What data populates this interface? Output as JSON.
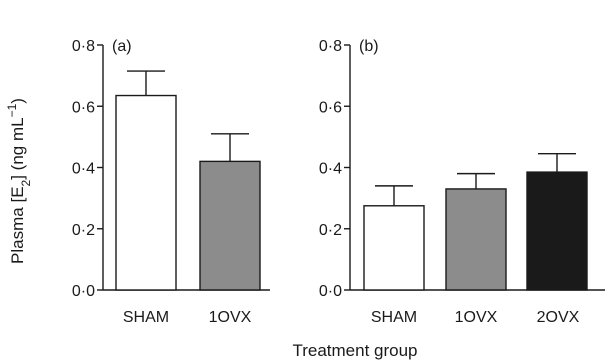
{
  "chart_data": [
    {
      "type": "bar",
      "panel_label": "(a)",
      "categories": [
        "SHAM",
        "1OVX"
      ],
      "values": [
        0.635,
        0.42
      ],
      "errors": [
        0.08,
        0.09
      ],
      "colors": [
        "#ffffff",
        "#8c8c8c"
      ],
      "ylim": [
        0,
        0.8
      ],
      "yticks": [
        "0·0",
        "0·2",
        "0·4",
        "0·6",
        "0·8"
      ]
    },
    {
      "type": "bar",
      "panel_label": "(b)",
      "categories": [
        "SHAM",
        "1OVX",
        "2OVX"
      ],
      "values": [
        0.275,
        0.33,
        0.385
      ],
      "errors": [
        0.065,
        0.05,
        0.06
      ],
      "colors": [
        "#ffffff",
        "#8c8c8c",
        "#1a1a1a"
      ],
      "ylim": [
        0,
        0.8
      ],
      "yticks": [
        "0·0",
        "0·2",
        "0·4",
        "0·6",
        "0·8"
      ]
    }
  ],
  "ylabel_main": "Plasma [E",
  "ylabel_sub": "2",
  "ylabel_tail": "] (ng mL",
  "ylabel_sup": "−1",
  "ylabel_end": ")",
  "xlabel": "Treatment group"
}
